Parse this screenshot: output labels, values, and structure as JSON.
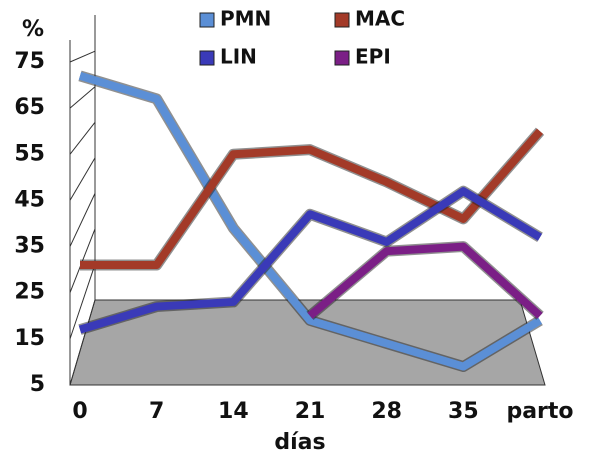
{
  "chart_data": {
    "type": "line",
    "y_label": "%",
    "x_label": "días",
    "categories": [
      "0",
      "7",
      "14",
      "21",
      "28",
      "35",
      "parto"
    ],
    "series": [
      {
        "name": "PMN",
        "color": "#5b8fd6",
        "values": [
          72,
          67,
          39,
          19,
          14,
          9,
          19
        ]
      },
      {
        "name": "MAC",
        "color": "#a33a28",
        "values": [
          31,
          31,
          55,
          56,
          49,
          41,
          60
        ]
      },
      {
        "name": "LIN",
        "color": "#3a3ab8",
        "values": [
          17,
          22,
          23,
          42,
          36,
          47,
          37
        ]
      },
      {
        "name": "EPI",
        "color": "#7b1f86",
        "values": [
          null,
          null,
          null,
          20,
          34,
          35,
          20
        ]
      }
    ],
    "ylim": [
      5,
      75
    ],
    "yticks": [
      5,
      15,
      25,
      35,
      45,
      55,
      65,
      75
    ],
    "grid": true
  }
}
